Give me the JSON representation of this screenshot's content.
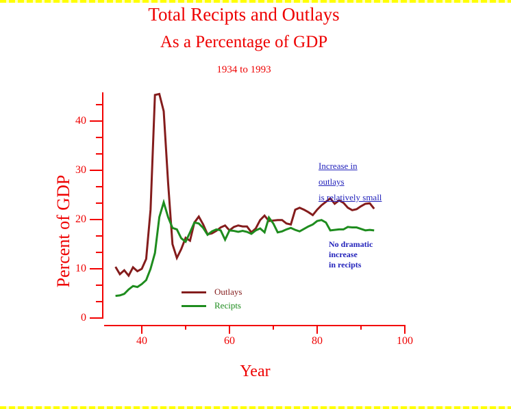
{
  "titles": {
    "line1": "Total Recipts and Outlays",
    "line2": "As a Percentage of GDP",
    "line3": "1934 to 1993"
  },
  "colors": {
    "title_red": "#ee0000",
    "axis_red": "#f20000",
    "outlays": "#841c1c",
    "recipts": "#1e8c1e",
    "annotation_blue": "#2222bb",
    "border_yellow": "#ffff00"
  },
  "axes": {
    "y_label": "Percent of GDP",
    "x_label": "Year",
    "y_ticks": [
      0,
      10,
      20,
      30,
      40
    ],
    "y_minor_ticks": [
      3.33,
      6.67,
      13.33,
      16.67,
      23.33,
      26.67,
      33.33,
      36.67,
      43.33
    ],
    "x_ticks": [
      40,
      60,
      80,
      100
    ],
    "x_minor_ticks": [
      50,
      70,
      90
    ]
  },
  "legend": {
    "items": [
      {
        "label": "Outlays",
        "color": "#841c1c"
      },
      {
        "label": "Recipts",
        "color": "#1e8c1e"
      }
    ]
  },
  "annotations": {
    "outlays_note": [
      "Increase in",
      "outlays",
      "is relatively small"
    ],
    "recipts_note": [
      "No dramatic",
      "increase",
      "in recipts"
    ]
  },
  "chart_data": {
    "type": "line",
    "title": "Total Recipts and Outlays As a Percentage of GDP",
    "subtitle": "1934 to 1993",
    "xlabel": "Year",
    "ylabel": "Percent of GDP",
    "xlim": [
      31.5,
      100
    ],
    "ylim": [
      0,
      46
    ],
    "grid": false,
    "legend_position": "inside-lower-left",
    "x": [
      34,
      35,
      36,
      37,
      38,
      39,
      40,
      41,
      42,
      43,
      44,
      45,
      46,
      47,
      48,
      49,
      50,
      51,
      52,
      53,
      54,
      55,
      56,
      57,
      58,
      59,
      60,
      61,
      62,
      63,
      64,
      65,
      66,
      67,
      68,
      69,
      70,
      71,
      72,
      73,
      74,
      75,
      76,
      77,
      78,
      79,
      80,
      81,
      82,
      83,
      84,
      85,
      86,
      87,
      88,
      89,
      90,
      91,
      92,
      93
    ],
    "series": [
      {
        "name": "Outlays",
        "color": "#841c1c",
        "values": [
          10.4,
          8.9,
          9.7,
          8.6,
          10.3,
          9.5,
          10.0,
          12.0,
          22.0,
          45.3,
          45.5,
          42.0,
          27.5,
          15.0,
          12.2,
          14.0,
          16.3,
          15.7,
          19.4,
          20.6,
          19.0,
          17.0,
          17.2,
          17.7,
          18.4,
          18.8,
          17.8,
          18.5,
          18.8,
          18.6,
          18.6,
          17.4,
          18.2,
          19.9,
          20.8,
          19.7,
          19.8,
          19.9,
          19.9,
          19.2,
          19.0,
          22.0,
          22.4,
          22.0,
          21.5,
          20.9,
          22.0,
          22.9,
          23.6,
          24.3,
          23.2,
          23.9,
          23.4,
          22.4,
          21.9,
          22.1,
          22.7,
          23.2,
          23.3,
          22.2
        ]
      },
      {
        "name": "Recipts",
        "color": "#1e8c1e",
        "values": [
          4.5,
          4.6,
          4.9,
          5.8,
          6.5,
          6.3,
          6.9,
          7.7,
          10.0,
          13.2,
          20.5,
          23.5,
          20.5,
          18.3,
          18.0,
          16.2,
          15.5,
          17.4,
          19.4,
          19.2,
          18.3,
          16.9,
          17.6,
          18.0,
          17.8,
          15.9,
          17.8,
          17.7,
          17.5,
          17.7,
          17.5,
          17.1,
          17.8,
          18.2,
          17.4,
          20.4,
          19.2,
          17.4,
          17.6,
          18.0,
          18.3,
          17.9,
          17.6,
          18.1,
          18.6,
          19.0,
          19.7,
          19.9,
          19.4,
          17.8,
          17.9,
          18.0,
          18.0,
          18.5,
          18.4,
          18.4,
          18.1,
          17.8,
          17.9,
          17.8
        ]
      }
    ]
  }
}
